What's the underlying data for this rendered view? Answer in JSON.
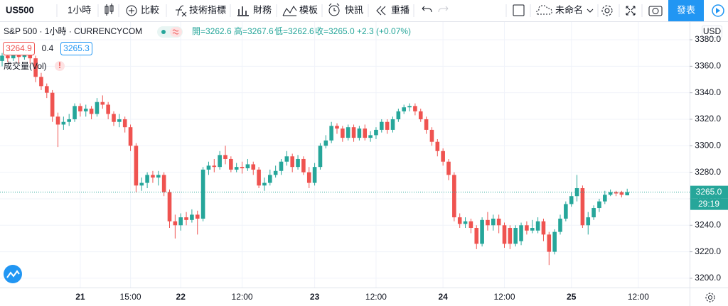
{
  "toolbar": {
    "symbol": "US500",
    "interval": "1小時",
    "compare": "比較",
    "indicators": "技術指標",
    "financials": "財務",
    "templates": "模板",
    "alerts": "快訊",
    "replay": "重播",
    "layout_name": "未命名",
    "publish": "發表"
  },
  "legend": {
    "title": "S&P 500 · 1小時 · CURRENCYCOM",
    "open": "開=3262.6",
    "high": "高=3267.6",
    "low": "低=3262.6",
    "close": "收=3265.0",
    "change": "+2.3 (+0.07%)",
    "bid": "3264.9",
    "spread": "0.4",
    "ask": "3265.3",
    "volume": "成交量(Vol)",
    "warning": "!"
  },
  "chart_data": {
    "type": "candlestick",
    "currency": "USD",
    "up_color": "#26a69a",
    "down_color": "#ef5350",
    "ylim": [
      3193.0,
      3393.4
    ],
    "yticks": [
      {
        "value": 3200,
        "label": "3200.0"
      },
      {
        "value": 3220,
        "label": "3220.0"
      },
      {
        "value": 3240,
        "label": "3240.0"
      },
      {
        "value": 3260,
        "label": "3260.0"
      },
      {
        "value": 3280,
        "label": "3280.0"
      },
      {
        "value": 3300,
        "label": "3300.0"
      },
      {
        "value": 3320,
        "label": "3320.0"
      },
      {
        "value": 3340,
        "label": "3340.0"
      },
      {
        "value": 3360,
        "label": "3360.0"
      },
      {
        "value": 3380,
        "label": "3380.0"
      }
    ],
    "grid": true,
    "current_price": {
      "value": 3265.0,
      "label": "3265.0"
    },
    "countdown": "29:19",
    "categories": [
      null,
      null,
      null,
      null,
      null,
      null,
      null,
      null,
      null,
      null,
      null,
      null,
      null,
      null,
      "21",
      null,
      null,
      null,
      null,
      null,
      null,
      null,
      null,
      "15:00",
      null,
      null,
      null,
      null,
      null,
      null,
      null,
      null,
      "22",
      null,
      null,
      null,
      null,
      null,
      null,
      null,
      null,
      null,
      null,
      "12:00",
      null,
      null,
      null,
      null,
      null,
      null,
      null,
      null,
      null,
      null,
      null,
      null,
      "23",
      null,
      null,
      null,
      null,
      null,
      null,
      null,
      null,
      null,
      null,
      "12:00",
      null,
      null,
      null,
      null,
      null,
      null,
      null,
      null,
      null,
      null,
      null,
      "24",
      null,
      null,
      null,
      null,
      null,
      null,
      null,
      null,
      null,
      null,
      "12:00",
      null,
      null,
      null,
      null,
      null,
      null,
      null,
      null,
      null,
      null,
      null,
      "25",
      null,
      null,
      null,
      null,
      null,
      null,
      null,
      null,
      null,
      null,
      null,
      "12:00"
    ],
    "open": [
      3364,
      3368,
      3366,
      3369,
      3367,
      3370,
      3366,
      3352,
      3345,
      3340,
      3322,
      3316,
      3318,
      3320,
      3330,
      3326,
      3328,
      3324,
      3333,
      3331,
      3324,
      3318,
      3320,
      3314,
      3300,
      3270,
      3272,
      3278,
      3276,
      3278,
      3265,
      3243,
      3240,
      3246,
      3244,
      3248,
      3245,
      3282,
      3285,
      3284,
      3293,
      3290,
      3282,
      3284,
      3283,
      3286,
      3282,
      3270,
      3272,
      3278,
      3281,
      3288,
      3292,
      3284,
      3290,
      3280,
      3272,
      3284,
      3300,
      3304,
      3315,
      3313,
      3306,
      3314,
      3306,
      3313,
      3306,
      3308,
      3312,
      3318,
      3312,
      3320,
      3326,
      3329,
      3330,
      3326,
      3320,
      3312,
      3303,
      3296,
      3288,
      3278,
      3246,
      3241,
      3243,
      3238,
      3226,
      3244,
      3240,
      3245,
      3240,
      3238,
      3226,
      3228,
      3240,
      3236,
      3236,
      3243,
      3233,
      3220,
      3235,
      3245,
      3256,
      3262,
      3268,
      3240,
      3246,
      3253,
      3258,
      3263,
      3265,
      3265,
      3262.6,
      null,
      null
    ],
    "high": [
      3370,
      3371,
      3372,
      3371,
      3374,
      3372,
      3368,
      3355,
      3347,
      3342,
      3325,
      3322,
      3324,
      3332,
      3332,
      3331,
      3330,
      3336,
      3338,
      3333,
      3326,
      3324,
      3322,
      3316,
      3302,
      3276,
      3280,
      3281,
      3281,
      3280,
      3267,
      3248,
      3249,
      3250,
      3252,
      3251,
      3284,
      3288,
      3290,
      3296,
      3300,
      3292,
      3287,
      3288,
      3290,
      3288,
      3284,
      3276,
      3282,
      3285,
      3290,
      3296,
      3294,
      3293,
      3292,
      3284,
      3287,
      3302,
      3308,
      3318,
      3317,
      3315,
      3316,
      3316,
      3315,
      3316,
      3311,
      3314,
      3320,
      3320,
      3322,
      3328,
      3331,
      3332,
      3332,
      3328,
      3322,
      3314,
      3305,
      3298,
      3290,
      3280,
      3249,
      3246,
      3245,
      3240,
      3246,
      3250,
      3248,
      3248,
      3242,
      3240,
      3240,
      3242,
      3243,
      3244,
      3246,
      3245,
      3235,
      3237,
      3248,
      3258,
      3265,
      3278,
      3270,
      3250,
      3255,
      3260,
      3266,
      3267,
      3266,
      3266,
      3267.6,
      null,
      null
    ],
    "low": [
      3360,
      3363,
      3364,
      3362,
      3365,
      3362,
      3348,
      3342,
      3336,
      3318,
      3299,
      3312,
      3315,
      3318,
      3322,
      3322,
      3320,
      3322,
      3328,
      3320,
      3315,
      3314,
      3310,
      3296,
      3265,
      3266,
      3268,
      3272,
      3270,
      3262,
      3238,
      3230,
      3236,
      3240,
      3242,
      3233,
      3243,
      3278,
      3280,
      3282,
      3286,
      3280,
      3280,
      3279,
      3281,
      3278,
      3268,
      3266,
      3270,
      3276,
      3278,
      3285,
      3280,
      3282,
      3278,
      3268,
      3270,
      3282,
      3298,
      3302,
      3309,
      3303,
      3304,
      3303,
      3304,
      3304,
      3303,
      3305,
      3310,
      3309,
      3310,
      3318,
      3324,
      3326,
      3323,
      3318,
      3309,
      3300,
      3292,
      3285,
      3274,
      3243,
      3238,
      3238,
      3234,
      3222,
      3224,
      3236,
      3236,
      3234,
      3223,
      3222,
      3224,
      3225,
      3233,
      3234,
      3234,
      3228,
      3210,
      3218,
      3233,
      3243,
      3254,
      3258,
      3238,
      3233,
      3244,
      3250,
      3256,
      3262,
      3262,
      3261,
      3262.6,
      null,
      null
    ],
    "close": [
      3368,
      3366,
      3369,
      3367,
      3370,
      3366,
      3352,
      3345,
      3340,
      3322,
      3316,
      3318,
      3320,
      3330,
      3326,
      3328,
      3324,
      3333,
      3331,
      3324,
      3318,
      3320,
      3314,
      3300,
      3270,
      3272,
      3278,
      3276,
      3278,
      3265,
      3243,
      3240,
      3246,
      3244,
      3248,
      3245,
      3282,
      3285,
      3284,
      3293,
      3290,
      3282,
      3284,
      3283,
      3286,
      3282,
      3270,
      3272,
      3278,
      3281,
      3288,
      3292,
      3284,
      3290,
      3280,
      3272,
      3284,
      3300,
      3304,
      3315,
      3313,
      3306,
      3314,
      3306,
      3313,
      3306,
      3308,
      3312,
      3318,
      3312,
      3320,
      3326,
      3329,
      3330,
      3326,
      3320,
      3312,
      3303,
      3296,
      3288,
      3278,
      3246,
      3241,
      3243,
      3238,
      3226,
      3244,
      3240,
      3245,
      3240,
      3226,
      3226,
      3238,
      3240,
      3236,
      3238,
      3243,
      3233,
      3220,
      3235,
      3245,
      3256,
      3262,
      3268,
      3240,
      3246,
      3253,
      3258,
      3263,
      3265,
      3264,
      3263,
      3265.0,
      null,
      null
    ]
  }
}
